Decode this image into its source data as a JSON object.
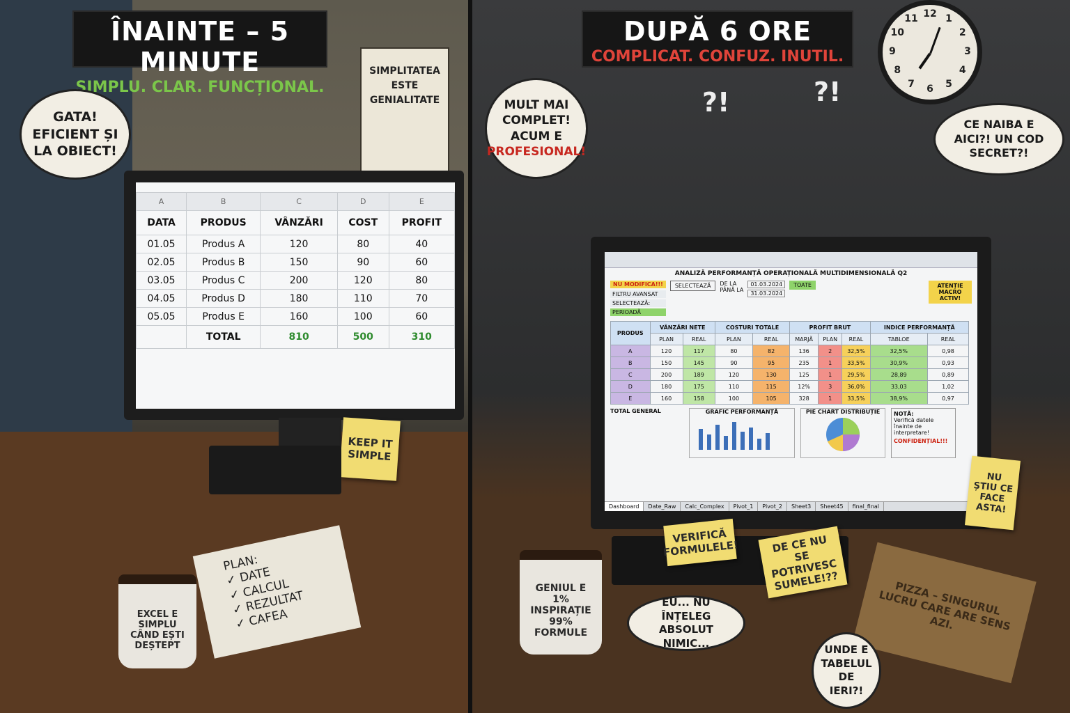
{
  "left": {
    "title": "ÎNAINTE – 5 MINUTE",
    "subtitle": "SIMPLU. CLAR. FUNCȚIONAL.",
    "bubble": "GATA! EFICIENT ȘI LA OBIECT!",
    "poster": "SIMPLITATEA ESTE GENIALITATE",
    "sheet": {
      "columns": [
        "A",
        "B",
        "C",
        "D",
        "E"
      ],
      "header": [
        "DATA",
        "PRODUS",
        "VÂNZĂRI",
        "COST",
        "PROFIT"
      ],
      "rows": [
        [
          "01.05",
          "Produs A",
          "120",
          "80",
          "40"
        ],
        [
          "02.05",
          "Produs B",
          "150",
          "90",
          "60"
        ],
        [
          "03.05",
          "Produs C",
          "200",
          "120",
          "80"
        ],
        [
          "04.05",
          "Produs D",
          "180",
          "110",
          "70"
        ],
        [
          "05.05",
          "Produs E",
          "160",
          "100",
          "60"
        ]
      ],
      "total": [
        "TOTAL",
        "810",
        "500",
        "310"
      ]
    },
    "sticky": "KEEP IT SIMPLE",
    "notebook": {
      "title": "PLAN:",
      "items": [
        "✓ DATE",
        "✓ CALCUL",
        "✓ REZULTAT",
        "✓ CAFEA"
      ]
    },
    "mug": "EXCEL E SIMPLU CÂND EȘTI DEȘTEPT"
  },
  "right": {
    "title": "DUPĂ 6 ORE",
    "subtitle": "COMPLICAT. CONFUZ. INUTIL.",
    "bubble_left": {
      "text": "MULT MAI COMPLET! ACUM E",
      "emphasis": "PROFESIONAL!"
    },
    "bubble_right": "CE NAIBA E AICI?! UN COD SECRET?!",
    "bubble_bottom": "EU... NU ÎNȚELEG ABSOLUT NIMIC...",
    "bubble_corner": "UNDE E TABELUL DE IERI?!",
    "exclamations": [
      "?!",
      "?!"
    ],
    "clock": [
      "12",
      "1",
      "2",
      "3",
      "4",
      "5",
      "6",
      "7",
      "8",
      "9",
      "10",
      "11"
    ],
    "sheet": {
      "title": "ANALIZĂ PERFORMANȚĂ OPERAȚIONALĂ MULTIDIMENSIONALĂ Q2",
      "warning": "NU MODIFICA!!!",
      "filters": [
        "FILTRU AVANSAT",
        "SELECTEAZĂ:",
        "PERIOADĂ"
      ],
      "select": "SELECTEAZĂ",
      "range": [
        "DE LA",
        "PÂNĂ LA"
      ],
      "dates": [
        "01.03.2024",
        "31.03.2024"
      ],
      "all": "TOATE",
      "macro": "ATENȚIE MACRO ACTIV!",
      "groups": [
        "PRODUS",
        "VÂNZĂRI NETE",
        "COSTURI TOTALE",
        "PROFIT BRUT",
        "INDICE PERFORMANȚĂ"
      ],
      "subheader": [
        "PLAN",
        "REAL",
        "PLAN",
        "REAL",
        "MARJĂ",
        "PLAN",
        "REAL",
        "TABLOE",
        "REAL"
      ],
      "rows": [
        [
          "A",
          "120",
          "117",
          "80",
          "82",
          "136",
          "2",
          "32,5%",
          "32,5%",
          "0,98"
        ],
        [
          "B",
          "150",
          "145",
          "90",
          "95",
          "235",
          "1",
          "33,5%",
          "30,9%",
          "0,93"
        ],
        [
          "C",
          "200",
          "189",
          "120",
          "130",
          "125",
          "1",
          "29,5%",
          "28,89",
          "0,89"
        ],
        [
          "D",
          "180",
          "175",
          "110",
          "115",
          "12%",
          "3",
          "36,0%",
          "33,03",
          "1,02"
        ],
        [
          "E",
          "160",
          "158",
          "100",
          "105",
          "328",
          "1",
          "33,5%",
          "38,9%",
          "0,97"
        ]
      ],
      "total": "TOTAL GENERAL",
      "chart_bar": "GRAFIC PERFORMANȚĂ",
      "chart_pie": "PIE CHART DISTRIBUȚIE",
      "note_title": "NOTĂ:",
      "note": "Verifică datele înainte de interpretare!",
      "confidential": "CONFIDENȚIAL!!!",
      "tabs": [
        "Dashboard",
        "Date_Raw",
        "Calc_Complex",
        "Pivot_1",
        "Pivot_2",
        "Sheet3",
        "Sheet45",
        "final_final"
      ]
    },
    "stickies": [
      "VERIFICĂ FORMULELE!",
      "DE CE NU SE POTRIVESC SUMELE!??",
      "NU ȘTIU CE FACE ASTA!"
    ],
    "mug": "GENIUL E 1% INSPIRAȚIE 99% FORMULE",
    "pizza": "PIZZA – SINGURUL LUCRU CARE ARE SENS AZI."
  }
}
